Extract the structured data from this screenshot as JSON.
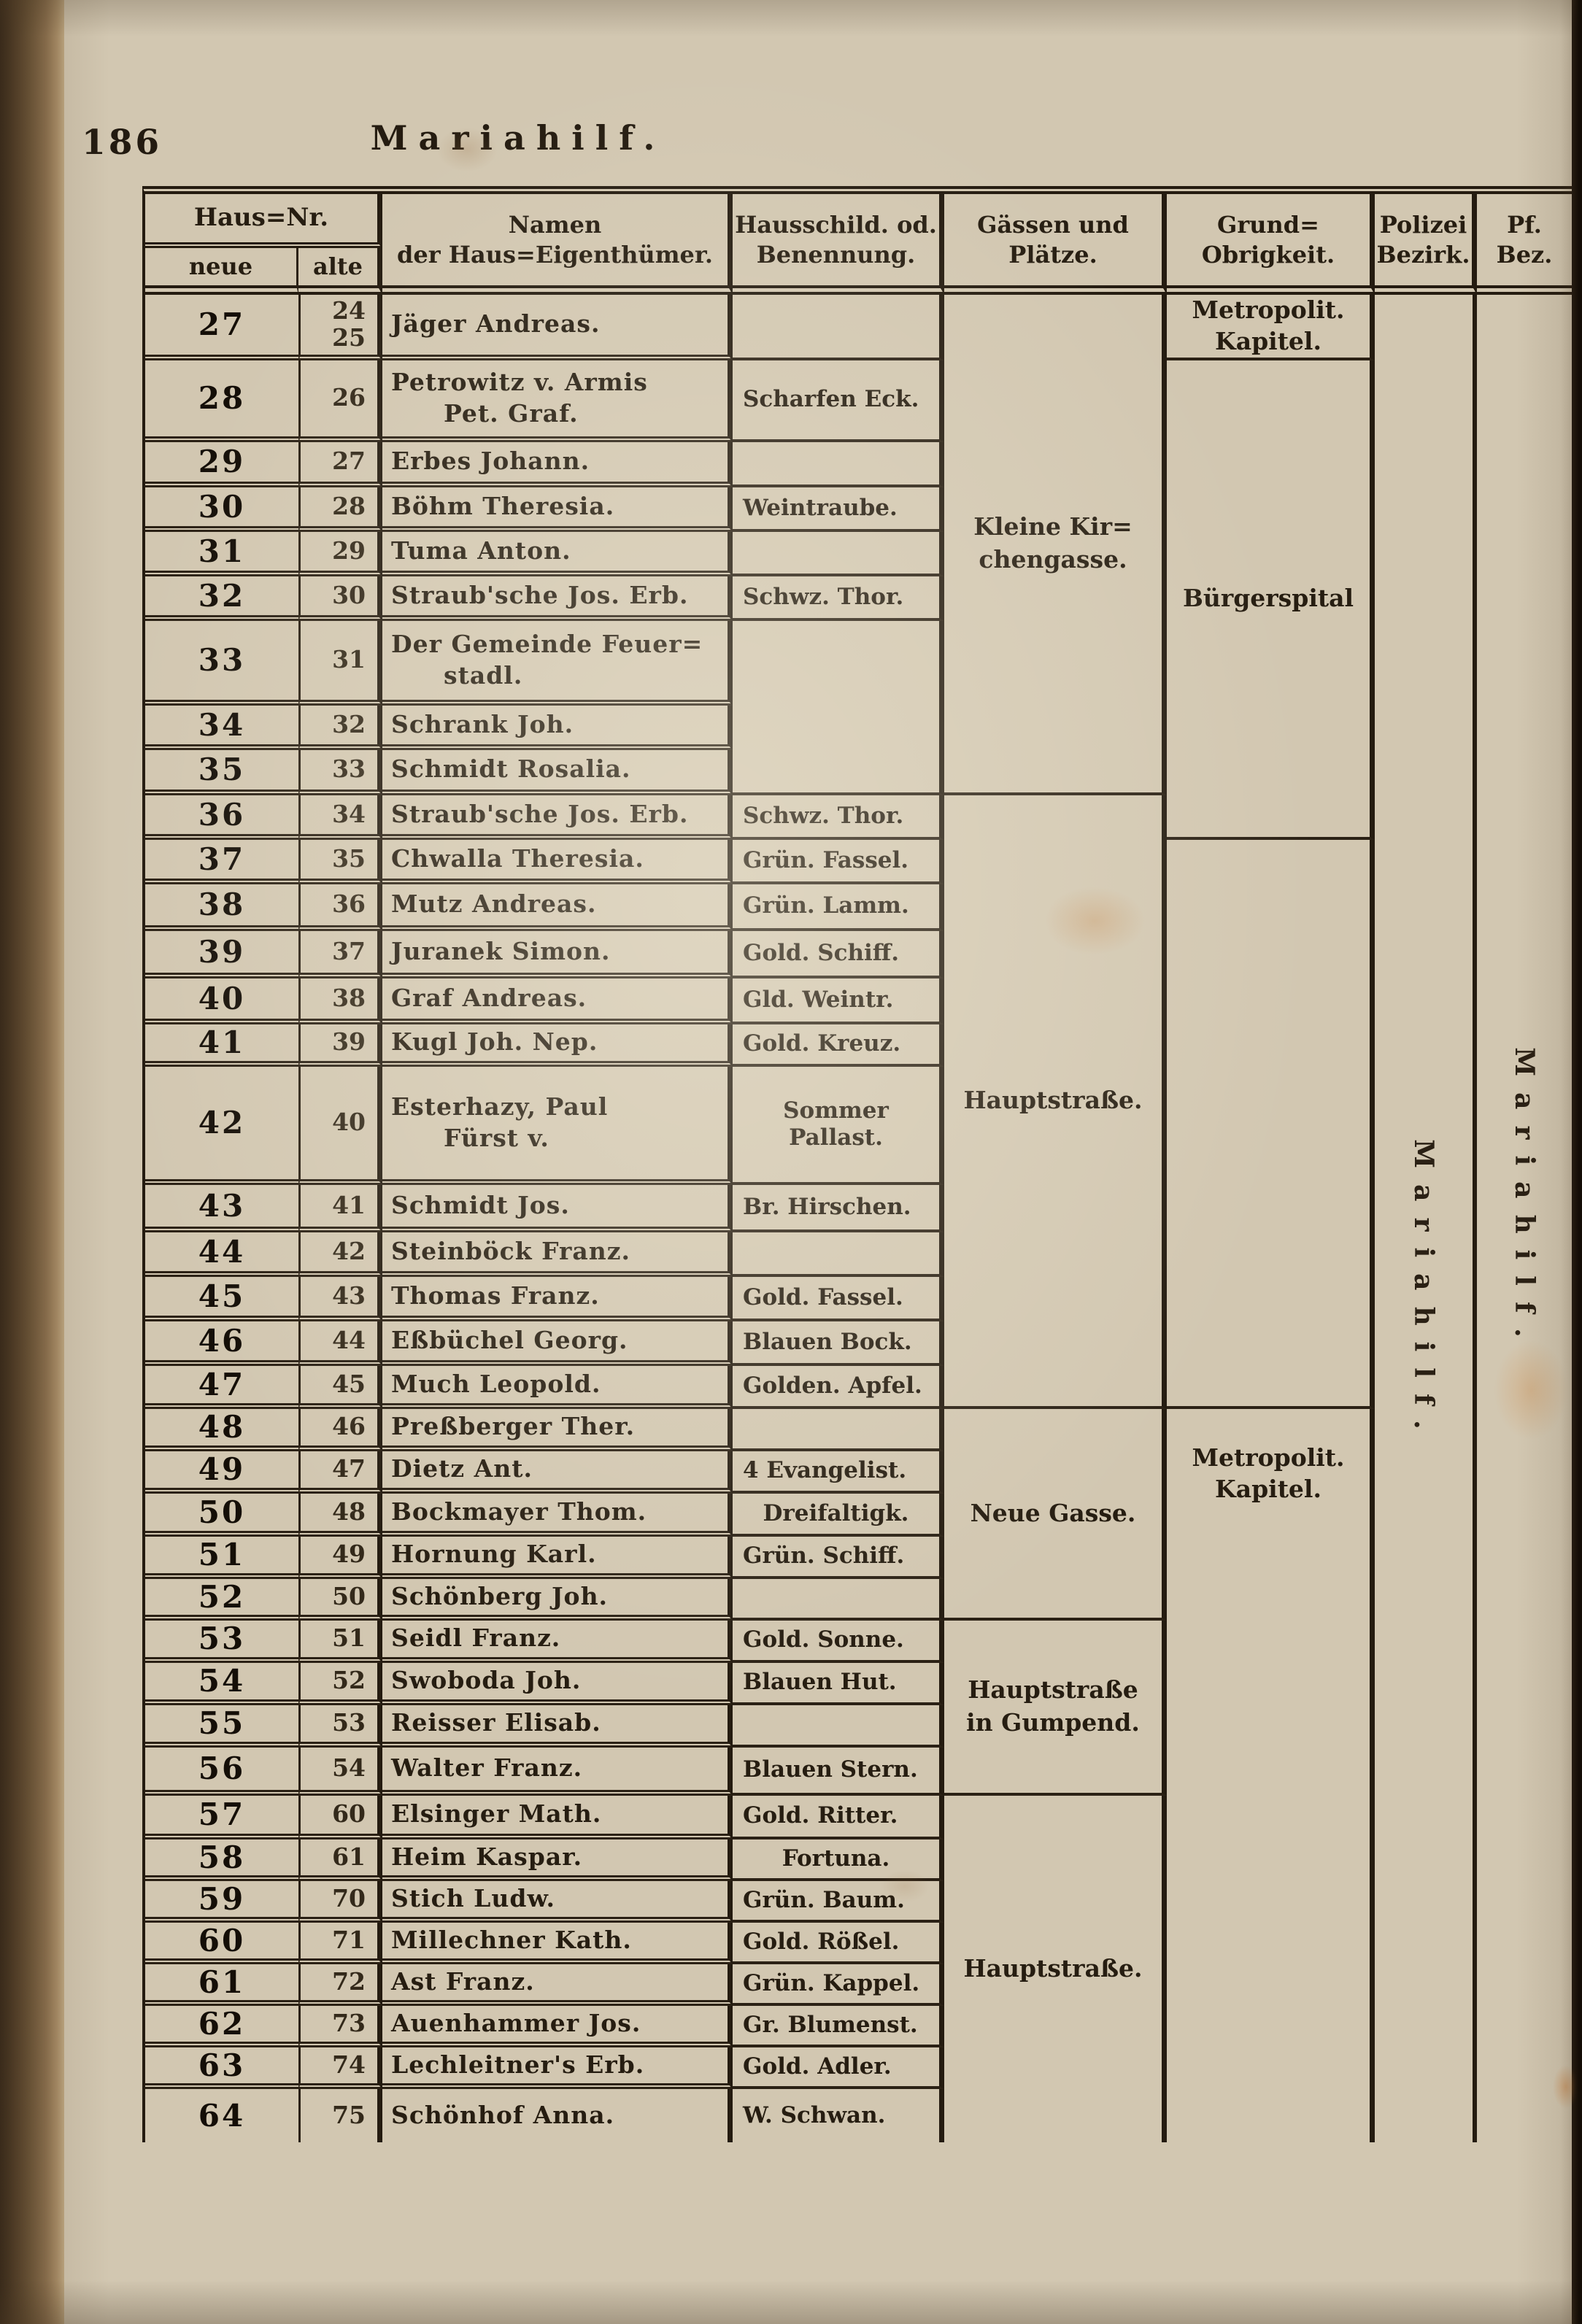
{
  "page": {
    "number": "186",
    "title": "Mariahilf."
  },
  "colors": {
    "paper": "#d2c7b1",
    "ink": "#2a2014",
    "spine_leather": "#6b5538",
    "stain": "#c27a38"
  },
  "table": {
    "headers": {
      "haus_nr": "Haus=Nr.",
      "neue": "neue",
      "alte": "alte",
      "namen": [
        "Namen",
        "der Haus=Eigenthümer."
      ],
      "hausschild": [
        "Hausschild. od.",
        "Benennung."
      ],
      "gassen": [
        "Gässen und",
        "Plätze."
      ],
      "grund": [
        "Grund=",
        "Obrigkeit."
      ],
      "polizei": [
        "Polizei",
        "Bezirk."
      ],
      "pf": [
        "Pf.",
        "Bez."
      ]
    },
    "rows": [
      {
        "neue": "27",
        "alte": [
          "24",
          "25"
        ],
        "name": [
          "Jäger Andreas."
        ],
        "h": 88,
        "schild": {
          "span": 1,
          "lines": []
        }
      },
      {
        "neue": "28",
        "alte": [
          "26"
        ],
        "name": [
          "Petrowitz v. Armis",
          "Pet. Graf."
        ],
        "h": 112,
        "schild": {
          "span": 1,
          "lines": [
            "Scharfen Eck."
          ]
        }
      },
      {
        "neue": "29",
        "alte": [
          "27"
        ],
        "name": [
          "Erbes Johann."
        ],
        "h": 62,
        "schild": {
          "span": 1,
          "lines": []
        }
      },
      {
        "neue": "30",
        "alte": [
          "28"
        ],
        "name": [
          "Böhm Theresia."
        ],
        "h": 61,
        "schild": {
          "span": 1,
          "lines": [
            "Weintraube."
          ]
        }
      },
      {
        "neue": "31",
        "alte": [
          "29"
        ],
        "name": [
          "Tuma Anton."
        ],
        "h": 61,
        "schild": {
          "span": 1,
          "lines": []
        }
      },
      {
        "neue": "32",
        "alte": [
          "30"
        ],
        "name": [
          "Straub'sche Jos. Erb."
        ],
        "h": 61,
        "schild": {
          "span": 1,
          "lines": [
            "Schwz. Thor."
          ]
        }
      },
      {
        "neue": "33",
        "alte": [
          "31"
        ],
        "name": [
          "Der Gemeinde Feuer=",
          "stadl."
        ],
        "h": 116,
        "schild": {
          "span": 3,
          "lines": []
        }
      },
      {
        "neue": "34",
        "alte": [
          "32"
        ],
        "name": [
          "Schrank Joh."
        ],
        "h": 61
      },
      {
        "neue": "35",
        "alte": [
          "33"
        ],
        "name": [
          "Schmidt Rosalia."
        ],
        "h": 62
      },
      {
        "neue": "36",
        "alte": [
          "34"
        ],
        "name": [
          "Straub'sche Jos. Erb."
        ],
        "h": 61,
        "schild": {
          "span": 1,
          "lines": [
            "Schwz. Thor."
          ]
        }
      },
      {
        "neue": "37",
        "alte": [
          "35"
        ],
        "name": [
          "Chwalla Theresia."
        ],
        "h": 61,
        "schild": {
          "span": 1,
          "lines": [
            "Grün. Fassel."
          ]
        }
      },
      {
        "neue": "38",
        "alte": [
          "36"
        ],
        "name": [
          "Mutz Andreas."
        ],
        "h": 64,
        "schild": {
          "span": 1,
          "lines": [
            "Grün. Lamm."
          ]
        }
      },
      {
        "neue": "39",
        "alte": [
          "37"
        ],
        "name": [
          "Juranek Simon."
        ],
        "h": 65,
        "schild": {
          "span": 1,
          "lines": [
            "Gold. Schiff."
          ]
        }
      },
      {
        "neue": "40",
        "alte": [
          "38"
        ],
        "name": [
          "Graf Andreas."
        ],
        "h": 63,
        "schild": {
          "span": 1,
          "lines": [
            "Gld. Weintr."
          ]
        }
      },
      {
        "neue": "41",
        "alte": [
          "39"
        ],
        "name": [
          "Kugl Joh. Nep."
        ],
        "h": 58,
        "schild": {
          "span": 1,
          "lines": [
            "Gold. Kreuz."
          ]
        }
      },
      {
        "neue": "42",
        "alte": [
          "40"
        ],
        "name": [
          "Esterhazy, Paul",
          "Fürst v."
        ],
        "h": 162,
        "schild": {
          "span": 1,
          "lines": [
            "Sommer",
            "Pallast."
          ],
          "align": "center"
        }
      },
      {
        "neue": "43",
        "alte": [
          "41"
        ],
        "name": [
          "Schmidt Jos."
        ],
        "h": 65,
        "schild": {
          "span": 1,
          "lines": [
            "Br. Hirschen."
          ]
        }
      },
      {
        "neue": "44",
        "alte": [
          "42"
        ],
        "name": [
          "Steinböck Franz."
        ],
        "h": 61,
        "schild": {
          "span": 1,
          "lines": []
        }
      },
      {
        "neue": "45",
        "alte": [
          "43"
        ],
        "name": [
          "Thomas Franz."
        ],
        "h": 61,
        "schild": {
          "span": 1,
          "lines": [
            "Gold. Fassel."
          ]
        }
      },
      {
        "neue": "46",
        "alte": [
          "44"
        ],
        "name": [
          "Eßbüchel Georg."
        ],
        "h": 61,
        "schild": {
          "span": 1,
          "lines": [
            "Blauen Bock."
          ]
        }
      },
      {
        "neue": "47",
        "alte": [
          "45"
        ],
        "name": [
          "Much Leopold."
        ],
        "h": 59,
        "schild": {
          "span": 1,
          "lines": [
            "Golden. Apfel."
          ]
        }
      },
      {
        "neue": "48",
        "alte": [
          "46"
        ],
        "name": [
          "Preßberger Ther."
        ],
        "h": 58,
        "schild": {
          "span": 1,
          "lines": []
        }
      },
      {
        "neue": "49",
        "alte": [
          "47"
        ],
        "name": [
          "Dietz Ant."
        ],
        "h": 58,
        "schild": {
          "span": 1,
          "lines": [
            "4 Evangelist."
          ]
        }
      },
      {
        "neue": "50",
        "alte": [
          "48"
        ],
        "name": [
          "Bockmayer Thom."
        ],
        "h": 59,
        "schild": {
          "span": 1,
          "lines": [
            "Dreifaltigk."
          ],
          "align": "center"
        }
      },
      {
        "neue": "51",
        "alte": [
          "49"
        ],
        "name": [
          "Hornung Karl."
        ],
        "h": 58,
        "schild": {
          "span": 1,
          "lines": [
            "Grün. Schiff."
          ]
        }
      },
      {
        "neue": "52",
        "alte": [
          "50"
        ],
        "name": [
          "Schönberg Joh."
        ],
        "h": 56,
        "schild": {
          "span": 1,
          "lines": []
        }
      },
      {
        "neue": "53",
        "alte": [
          "51"
        ],
        "name": [
          "Seidl Franz."
        ],
        "h": 58,
        "schild": {
          "span": 1,
          "lines": [
            "Gold. Sonne."
          ]
        }
      },
      {
        "neue": "54",
        "alte": [
          "52"
        ],
        "name": [
          "Swoboda Joh."
        ],
        "h": 58,
        "schild": {
          "span": 1,
          "lines": [
            "Blauen Hut."
          ]
        }
      },
      {
        "neue": "55",
        "alte": [
          "53"
        ],
        "name": [
          "Reisser Elisab."
        ],
        "h": 58,
        "schild": {
          "span": 1,
          "lines": []
        }
      },
      {
        "neue": "56",
        "alte": [
          "54"
        ],
        "name": [
          "Walter Franz."
        ],
        "h": 66,
        "schild": {
          "span": 1,
          "lines": [
            "Blauen Stern."
          ]
        }
      },
      {
        "neue": "57",
        "alte": [
          "60"
        ],
        "name": [
          "Elsinger Math."
        ],
        "h": 60,
        "schild": {
          "span": 1,
          "lines": [
            "Gold. Ritter."
          ]
        }
      },
      {
        "neue": "58",
        "alte": [
          "61"
        ],
        "name": [
          "Heim Kaspar."
        ],
        "h": 56,
        "schild": {
          "span": 1,
          "lines": [
            "Fortuna."
          ],
          "align": "center"
        }
      },
      {
        "neue": "59",
        "alte": [
          "70"
        ],
        "name": [
          "Stich Ludw."
        ],
        "h": 56,
        "schild": {
          "span": 1,
          "lines": [
            "Grün. Baum."
          ]
        }
      },
      {
        "neue": "60",
        "alte": [
          "71"
        ],
        "name": [
          "Millechner Kath."
        ],
        "h": 57,
        "schild": {
          "span": 1,
          "lines": [
            "Gold. Rößel."
          ]
        }
      },
      {
        "neue": "61",
        "alte": [
          "72"
        ],
        "name": [
          "Ast Franz."
        ],
        "h": 55,
        "schild": {
          "span": 1,
          "lines": [
            "Grün. Kappel."
          ]
        }
      },
      {
        "neue": "62",
        "alte": [
          "73"
        ],
        "name": [
          "Auenhammer Jos."
        ],
        "h": 55,
        "schild": {
          "span": 1,
          "lines": [
            "Gr. Blumenst."
          ]
        }
      },
      {
        "neue": "63",
        "alte": [
          "74"
        ],
        "name": [
          "Lechleitner's Erb."
        ],
        "h": 57,
        "schild": {
          "span": 1,
          "lines": [
            "Gold. Adler."
          ]
        }
      },
      {
        "neue": "64",
        "alte": [
          "75"
        ],
        "name": [
          "Schönhof Anna."
        ],
        "h": 73,
        "schild": {
          "span": 1,
          "lines": [
            "W. Schwan."
          ],
          "last": true
        }
      }
    ],
    "gassen_sections": [
      {
        "start": 0,
        "span": 9,
        "lines": [
          "Kleine Kir=",
          "chengasse."
        ]
      },
      {
        "start": 9,
        "span": 12,
        "lines": [
          "Hauptstraße."
        ]
      },
      {
        "start": 21,
        "span": 5,
        "lines": [
          "Neue Gasse."
        ]
      },
      {
        "start": 26,
        "span": 4,
        "lines": [
          "Hauptstraße",
          "in Gumpend."
        ]
      },
      {
        "start": 30,
        "span": 8,
        "lines": [
          "Hauptstraße."
        ],
        "last": true
      }
    ],
    "grund_sections": [
      {
        "start": 0,
        "span": 1,
        "lines": [
          "Metropolit.",
          "Kapitel."
        ]
      },
      {
        "start": 1,
        "span": 9,
        "lines": [
          "Bürgerspital"
        ]
      },
      {
        "start": 10,
        "span": 11,
        "lines": []
      },
      {
        "start": 21,
        "span": 17,
        "lines": [
          "Metropolit.",
          "Kapitel."
        ],
        "valign": "top",
        "last": true
      }
    ],
    "polizei_sections": [
      {
        "start": 0,
        "span": 38,
        "vertical": "Mariahilf.",
        "last": true
      }
    ],
    "pf_sections": [
      {
        "start": 0,
        "span": 38,
        "vertical": "Mariahilf.",
        "last": true
      }
    ]
  }
}
